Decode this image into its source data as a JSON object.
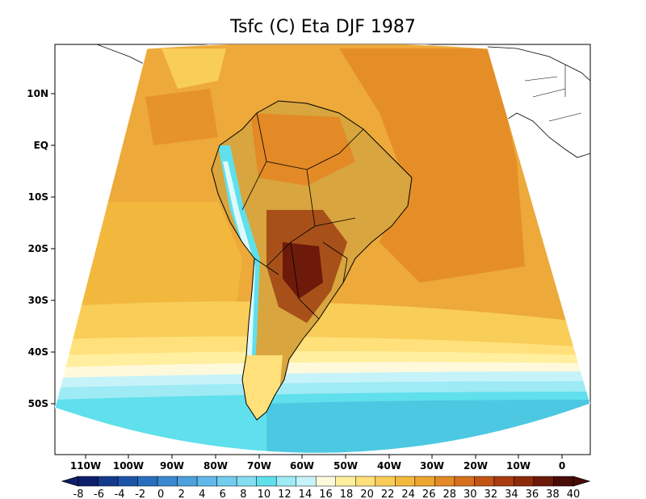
{
  "title": "Tsfc (C) Eta DJF 1987",
  "lat_labels": [
    "10N",
    "EQ",
    "10S",
    "20S",
    "30S",
    "40S",
    "50S"
  ],
  "lon_labels": [
    "110W",
    "100W",
    "90W",
    "80W",
    "70W",
    "60W",
    "50W",
    "40W",
    "30W",
    "20W",
    "10W",
    "0"
  ],
  "colorbar": {
    "labels": [
      "-8",
      "-6",
      "-4",
      "-2",
      "0",
      "2",
      "4",
      "6",
      "8",
      "10",
      "12",
      "14",
      "16",
      "18",
      "20",
      "22",
      "24",
      "26",
      "28",
      "30",
      "32",
      "34",
      "36",
      "38",
      "40"
    ],
    "colors": [
      "#0d1f6b",
      "#143a8c",
      "#1c55a8",
      "#2a6fbf",
      "#3b88cf",
      "#4da0dc",
      "#60b9e8",
      "#72cdee",
      "#84ddf0",
      "#5fe0ec",
      "#9eeaf5",
      "#c6f3f9",
      "#fff9dc",
      "#ffef9e",
      "#ffe07a",
      "#f8cd58",
      "#f2b83e",
      "#eca52f",
      "#e38a26",
      "#d6701d",
      "#c25416",
      "#a83c10",
      "#8c2b0c",
      "#6d1a0a",
      "#4a0c06"
    ]
  },
  "colors": {
    "ocean_default": "#eda93a",
    "water_cold": "#5fe0ec",
    "land_default": "#d8a53e",
    "border": "#000000"
  }
}
